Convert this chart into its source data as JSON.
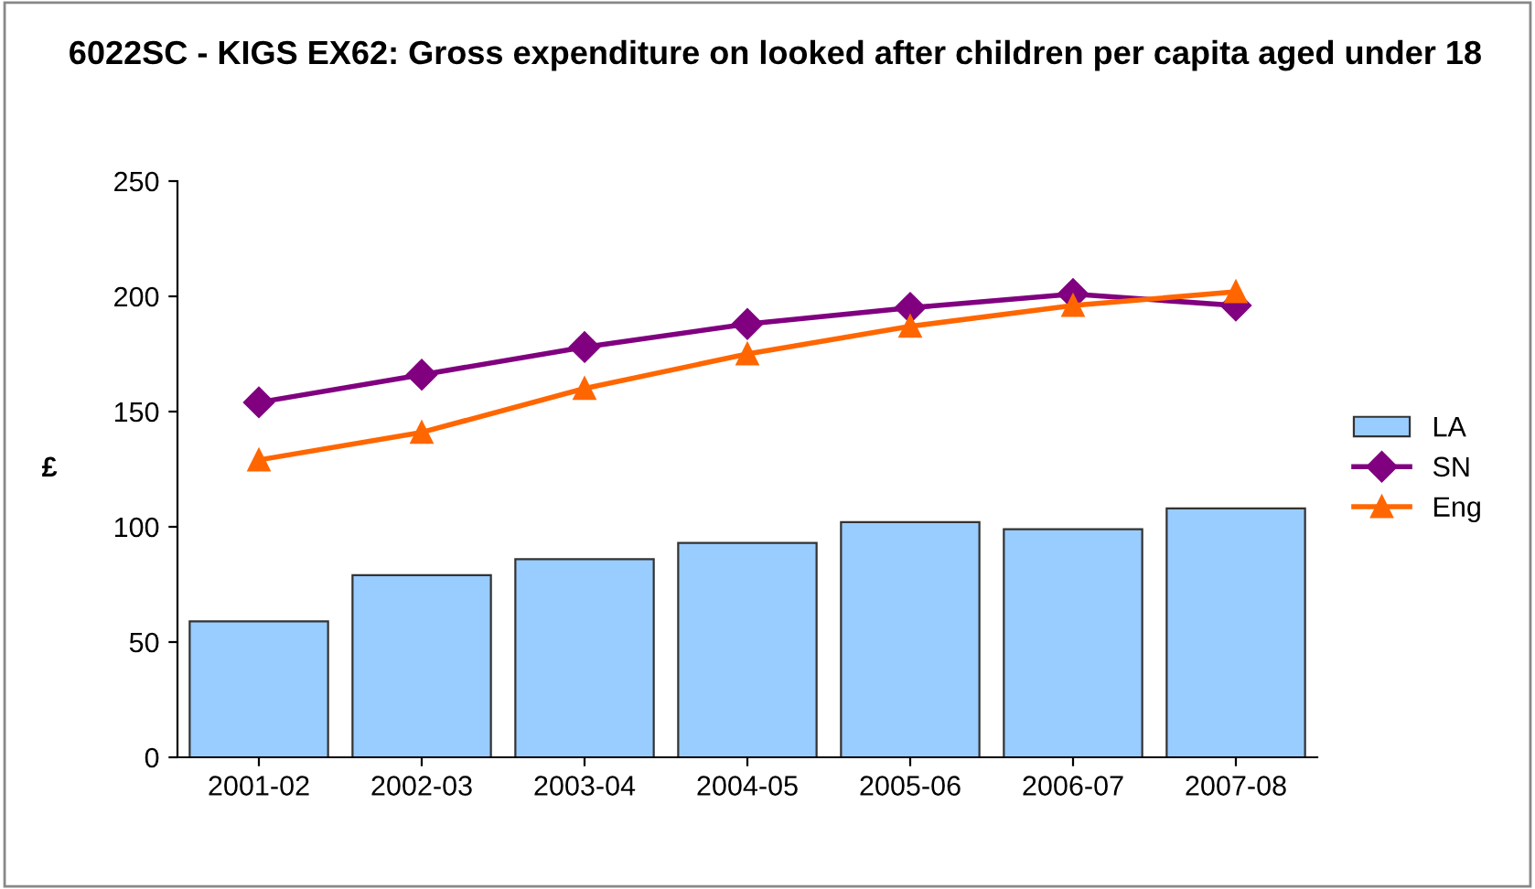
{
  "chart_data": {
    "type": "bar",
    "title": "6022SC - KIGS EX62: Gross expenditure on looked after children per capita aged under 18",
    "ylabel": "£",
    "categories": [
      "2001-02",
      "2002-03",
      "2003-04",
      "2004-05",
      "2005-06",
      "2006-07",
      "2007-08"
    ],
    "series": [
      {
        "name": "LA",
        "color": "#99ccff",
        "values": [
          59,
          79,
          86,
          93,
          102,
          99,
          108
        ]
      },
      {
        "name": "SN",
        "type": "line",
        "color": "#800080",
        "marker": "diamond",
        "values": [
          154,
          166,
          178,
          188,
          195,
          201,
          196
        ]
      },
      {
        "name": "Eng",
        "type": "line",
        "color": "#ff6600",
        "marker": "triangle",
        "values": [
          129,
          141,
          160,
          175,
          187,
          196,
          202
        ]
      }
    ],
    "ylim": [
      0,
      250
    ],
    "yticks": [
      0,
      50,
      100,
      150,
      200,
      250
    ],
    "grid": false,
    "legend": "right"
  }
}
